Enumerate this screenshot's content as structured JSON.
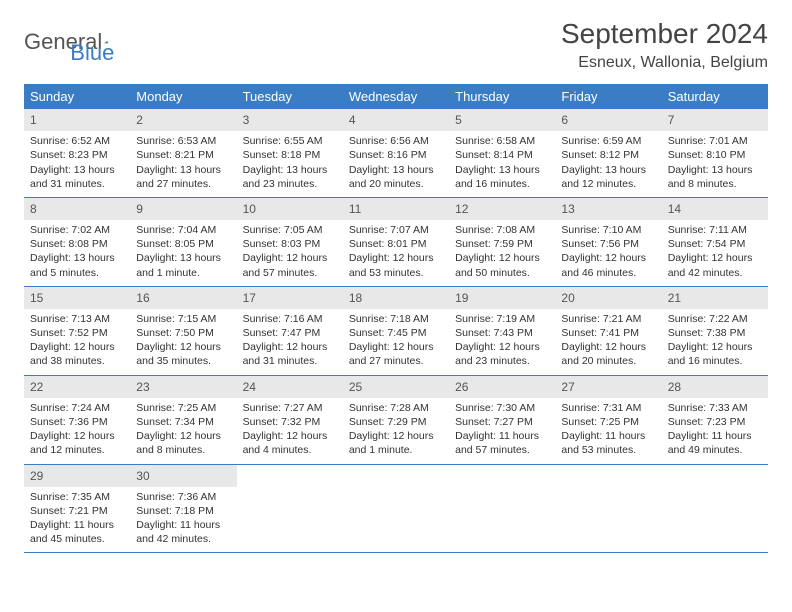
{
  "logo": {
    "word1": "General",
    "word2": "Blue"
  },
  "title": "September 2024",
  "location": "Esneux, Wallonia, Belgium",
  "colors": {
    "accent": "#3b7dc4",
    "dayBarBg": "#e8e8e8",
    "text": "#333333",
    "bg": "#ffffff"
  },
  "daysOfWeek": [
    "Sunday",
    "Monday",
    "Tuesday",
    "Wednesday",
    "Thursday",
    "Friday",
    "Saturday"
  ],
  "weeks": [
    [
      {
        "n": "1",
        "sr": "Sunrise: 6:52 AM",
        "ss": "Sunset: 8:23 PM",
        "d1": "Daylight: 13 hours",
        "d2": "and 31 minutes."
      },
      {
        "n": "2",
        "sr": "Sunrise: 6:53 AM",
        "ss": "Sunset: 8:21 PM",
        "d1": "Daylight: 13 hours",
        "d2": "and 27 minutes."
      },
      {
        "n": "3",
        "sr": "Sunrise: 6:55 AM",
        "ss": "Sunset: 8:18 PM",
        "d1": "Daylight: 13 hours",
        "d2": "and 23 minutes."
      },
      {
        "n": "4",
        "sr": "Sunrise: 6:56 AM",
        "ss": "Sunset: 8:16 PM",
        "d1": "Daylight: 13 hours",
        "d2": "and 20 minutes."
      },
      {
        "n": "5",
        "sr": "Sunrise: 6:58 AM",
        "ss": "Sunset: 8:14 PM",
        "d1": "Daylight: 13 hours",
        "d2": "and 16 minutes."
      },
      {
        "n": "6",
        "sr": "Sunrise: 6:59 AM",
        "ss": "Sunset: 8:12 PM",
        "d1": "Daylight: 13 hours",
        "d2": "and 12 minutes."
      },
      {
        "n": "7",
        "sr": "Sunrise: 7:01 AM",
        "ss": "Sunset: 8:10 PM",
        "d1": "Daylight: 13 hours",
        "d2": "and 8 minutes."
      }
    ],
    [
      {
        "n": "8",
        "sr": "Sunrise: 7:02 AM",
        "ss": "Sunset: 8:08 PM",
        "d1": "Daylight: 13 hours",
        "d2": "and 5 minutes."
      },
      {
        "n": "9",
        "sr": "Sunrise: 7:04 AM",
        "ss": "Sunset: 8:05 PM",
        "d1": "Daylight: 13 hours",
        "d2": "and 1 minute."
      },
      {
        "n": "10",
        "sr": "Sunrise: 7:05 AM",
        "ss": "Sunset: 8:03 PM",
        "d1": "Daylight: 12 hours",
        "d2": "and 57 minutes."
      },
      {
        "n": "11",
        "sr": "Sunrise: 7:07 AM",
        "ss": "Sunset: 8:01 PM",
        "d1": "Daylight: 12 hours",
        "d2": "and 53 minutes."
      },
      {
        "n": "12",
        "sr": "Sunrise: 7:08 AM",
        "ss": "Sunset: 7:59 PM",
        "d1": "Daylight: 12 hours",
        "d2": "and 50 minutes."
      },
      {
        "n": "13",
        "sr": "Sunrise: 7:10 AM",
        "ss": "Sunset: 7:56 PM",
        "d1": "Daylight: 12 hours",
        "d2": "and 46 minutes."
      },
      {
        "n": "14",
        "sr": "Sunrise: 7:11 AM",
        "ss": "Sunset: 7:54 PM",
        "d1": "Daylight: 12 hours",
        "d2": "and 42 minutes."
      }
    ],
    [
      {
        "n": "15",
        "sr": "Sunrise: 7:13 AM",
        "ss": "Sunset: 7:52 PM",
        "d1": "Daylight: 12 hours",
        "d2": "and 38 minutes."
      },
      {
        "n": "16",
        "sr": "Sunrise: 7:15 AM",
        "ss": "Sunset: 7:50 PM",
        "d1": "Daylight: 12 hours",
        "d2": "and 35 minutes."
      },
      {
        "n": "17",
        "sr": "Sunrise: 7:16 AM",
        "ss": "Sunset: 7:47 PM",
        "d1": "Daylight: 12 hours",
        "d2": "and 31 minutes."
      },
      {
        "n": "18",
        "sr": "Sunrise: 7:18 AM",
        "ss": "Sunset: 7:45 PM",
        "d1": "Daylight: 12 hours",
        "d2": "and 27 minutes."
      },
      {
        "n": "19",
        "sr": "Sunrise: 7:19 AM",
        "ss": "Sunset: 7:43 PM",
        "d1": "Daylight: 12 hours",
        "d2": "and 23 minutes."
      },
      {
        "n": "20",
        "sr": "Sunrise: 7:21 AM",
        "ss": "Sunset: 7:41 PM",
        "d1": "Daylight: 12 hours",
        "d2": "and 20 minutes."
      },
      {
        "n": "21",
        "sr": "Sunrise: 7:22 AM",
        "ss": "Sunset: 7:38 PM",
        "d1": "Daylight: 12 hours",
        "d2": "and 16 minutes."
      }
    ],
    [
      {
        "n": "22",
        "sr": "Sunrise: 7:24 AM",
        "ss": "Sunset: 7:36 PM",
        "d1": "Daylight: 12 hours",
        "d2": "and 12 minutes."
      },
      {
        "n": "23",
        "sr": "Sunrise: 7:25 AM",
        "ss": "Sunset: 7:34 PM",
        "d1": "Daylight: 12 hours",
        "d2": "and 8 minutes."
      },
      {
        "n": "24",
        "sr": "Sunrise: 7:27 AM",
        "ss": "Sunset: 7:32 PM",
        "d1": "Daylight: 12 hours",
        "d2": "and 4 minutes."
      },
      {
        "n": "25",
        "sr": "Sunrise: 7:28 AM",
        "ss": "Sunset: 7:29 PM",
        "d1": "Daylight: 12 hours",
        "d2": "and 1 minute."
      },
      {
        "n": "26",
        "sr": "Sunrise: 7:30 AM",
        "ss": "Sunset: 7:27 PM",
        "d1": "Daylight: 11 hours",
        "d2": "and 57 minutes."
      },
      {
        "n": "27",
        "sr": "Sunrise: 7:31 AM",
        "ss": "Sunset: 7:25 PM",
        "d1": "Daylight: 11 hours",
        "d2": "and 53 minutes."
      },
      {
        "n": "28",
        "sr": "Sunrise: 7:33 AM",
        "ss": "Sunset: 7:23 PM",
        "d1": "Daylight: 11 hours",
        "d2": "and 49 minutes."
      }
    ],
    [
      {
        "n": "29",
        "sr": "Sunrise: 7:35 AM",
        "ss": "Sunset: 7:21 PM",
        "d1": "Daylight: 11 hours",
        "d2": "and 45 minutes."
      },
      {
        "n": "30",
        "sr": "Sunrise: 7:36 AM",
        "ss": "Sunset: 7:18 PM",
        "d1": "Daylight: 11 hours",
        "d2": "and 42 minutes."
      },
      {
        "empty": true
      },
      {
        "empty": true
      },
      {
        "empty": true
      },
      {
        "empty": true
      },
      {
        "empty": true
      }
    ]
  ]
}
